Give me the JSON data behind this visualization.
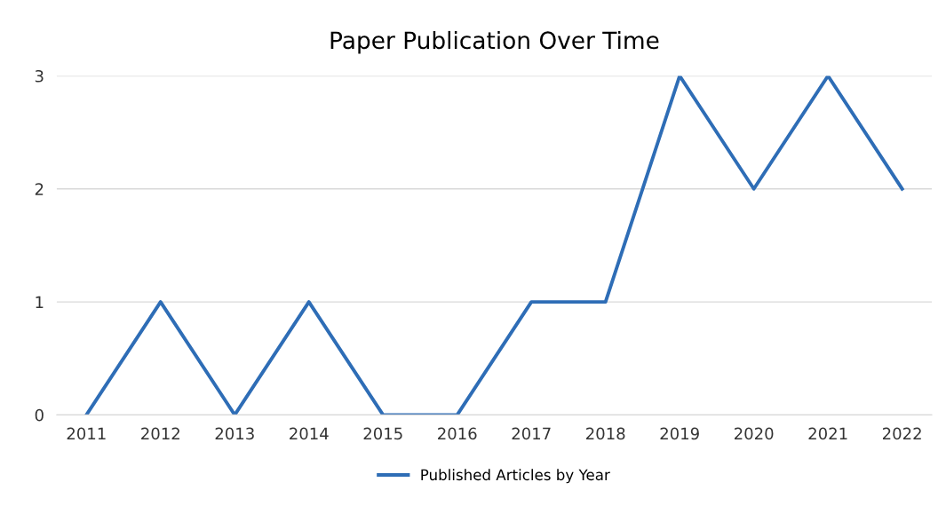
{
  "chart_data": {
    "type": "line",
    "title": "Paper Publication Over Time",
    "categories": [
      "2011",
      "2012",
      "2013",
      "2014",
      "2015",
      "2016",
      "2017",
      "2018",
      "2019",
      "2020",
      "2021",
      "2022"
    ],
    "series": [
      {
        "name": "Published Articles by Year",
        "color": "#2e6db6",
        "values": [
          0,
          1,
          0,
          1,
          0,
          0,
          1,
          1,
          3,
          2,
          3,
          2
        ]
      }
    ],
    "ylim": [
      0,
      3
    ],
    "yticks": [
      0,
      1,
      2,
      3
    ],
    "grid": "y",
    "legend": "bottom",
    "marker": "none",
    "line_style": "solid"
  }
}
